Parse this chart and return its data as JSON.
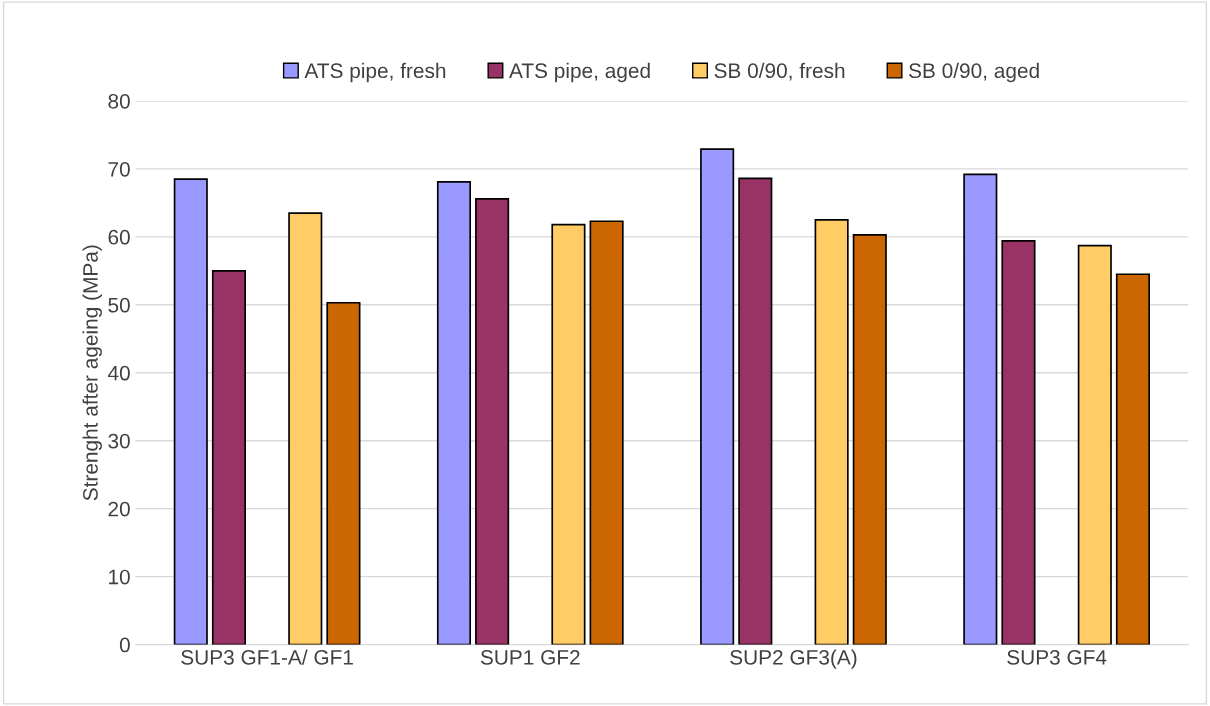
{
  "chart_data": {
    "type": "bar",
    "ylabel": "Strenght after ageing (MPa)",
    "categories": [
      "SUP3 GF1-A/ GF1",
      "SUP1 GF2",
      "SUP2 GF3(A)",
      "SUP3 GF4"
    ],
    "series": [
      {
        "name": "ATS pipe, fresh",
        "color": "#9999ff",
        "values": [
          68.5,
          68.1,
          72.9,
          69.2
        ]
      },
      {
        "name": "ATS pipe, aged",
        "color": "#993366",
        "values": [
          55.0,
          65.6,
          68.6,
          59.4
        ]
      },
      {
        "name": "SB 0/90, fresh",
        "color": "#ffcc66",
        "values": [
          63.5,
          61.8,
          62.5,
          58.7
        ]
      },
      {
        "name": "SB 0/90, aged",
        "color": "#cc6600",
        "values": [
          50.3,
          62.3,
          60.3,
          54.5
        ]
      }
    ],
    "ylim": [
      0,
      80
    ],
    "yticks": [
      0,
      10,
      20,
      30,
      40,
      50,
      60,
      70,
      80
    ],
    "grid": "y",
    "legend": "top"
  }
}
